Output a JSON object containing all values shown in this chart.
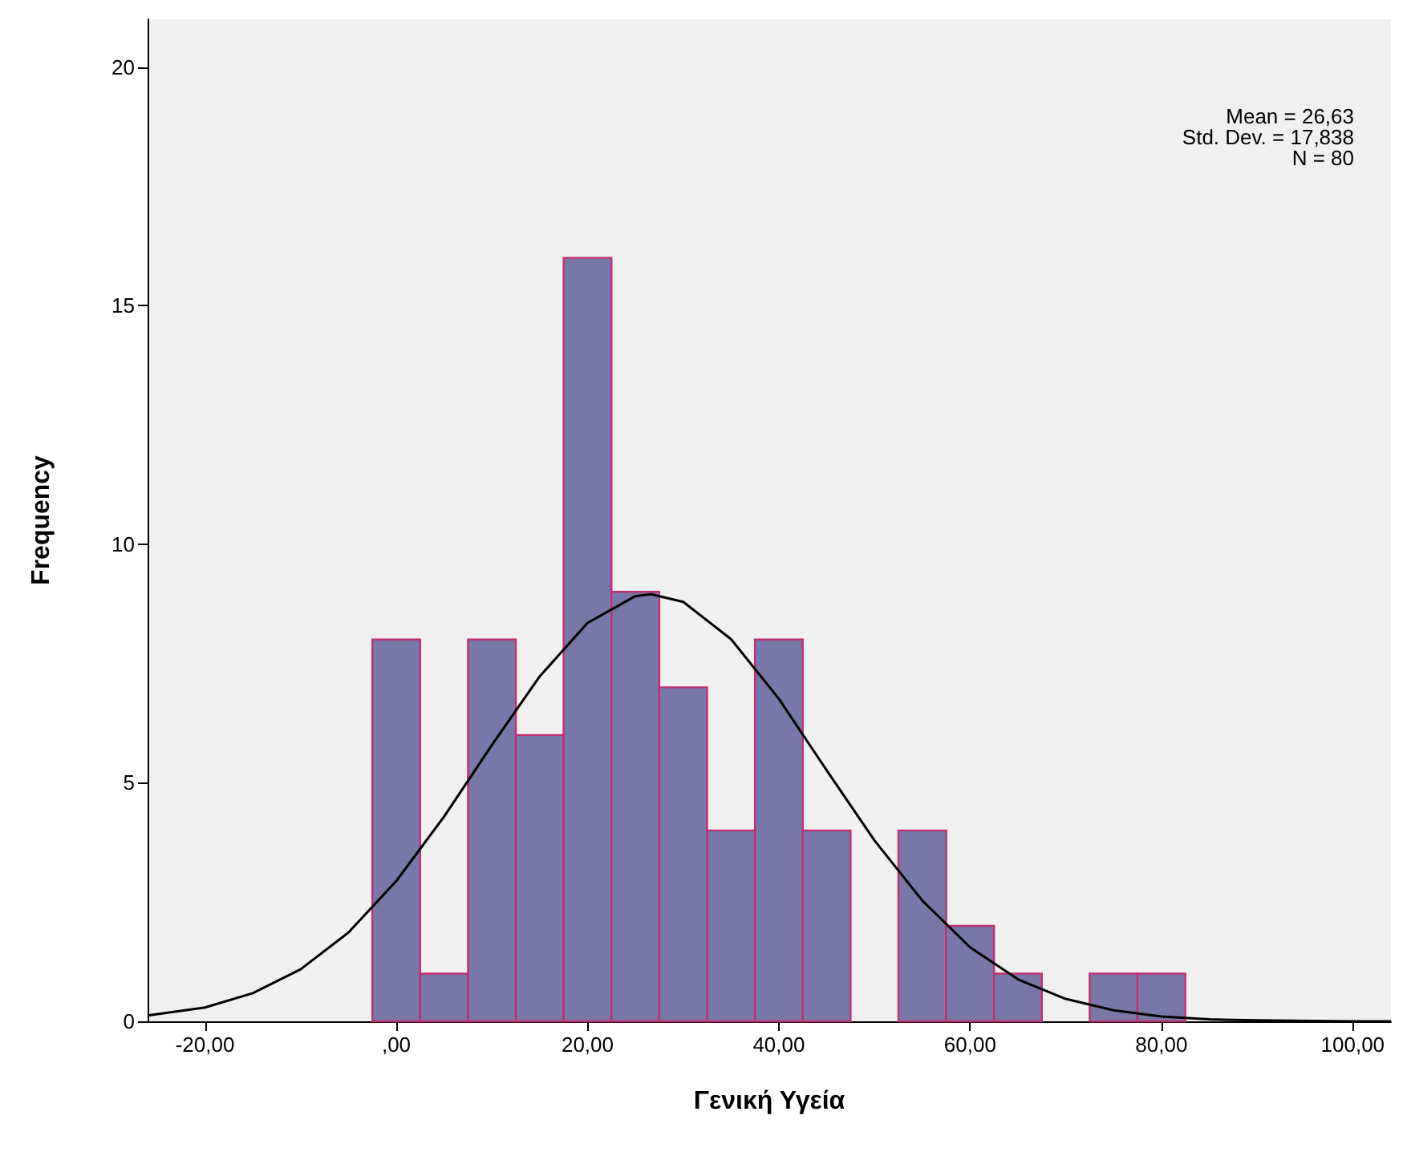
{
  "chart_data": {
    "type": "histogram",
    "xlabel": "Γενική Υγεία",
    "ylabel": "Frequency",
    "bins": [
      -2.5,
      2.5,
      7.5,
      12.5,
      17.5,
      22.5,
      27.5,
      32.5,
      37.5,
      42.5,
      47.5,
      52.5,
      57.5,
      62.5,
      67.5,
      72.5,
      77.5,
      82.5
    ],
    "values": [
      8,
      1,
      8,
      6,
      16,
      9,
      7,
      4,
      8,
      4,
      0,
      4,
      2,
      1,
      0,
      1,
      1
    ],
    "color": "#7878a8",
    "series": [
      {
        "type": "line",
        "color": "#000000",
        "x": [
          -26,
          -20,
          -15,
          -10,
          -5,
          0,
          5,
          10,
          15,
          20,
          25,
          26.63,
          30,
          35,
          40,
          45,
          50,
          55,
          60,
          65,
          70,
          75,
          80,
          85,
          90,
          100,
          104
        ],
        "values": [
          0.12,
          0.29,
          0.59,
          1.09,
          1.86,
          2.94,
          4.29,
          5.79,
          7.23,
          8.35,
          8.91,
          8.95,
          8.79,
          8.01,
          6.76,
          5.26,
          3.79,
          2.53,
          1.55,
          0.88,
          0.47,
          0.23,
          0.1,
          0.04,
          0.02,
          0,
          0
        ]
      }
    ],
    "xlim": [
      -26,
      104
    ],
    "xticks": [
      {
        "value": -20,
        "label": "-20,00"
      },
      {
        "value": 0,
        "label": ",00"
      },
      {
        "value": 20,
        "label": "20,00"
      },
      {
        "value": 40,
        "label": "40,00"
      },
      {
        "value": 60,
        "label": "60,00"
      },
      {
        "value": 80,
        "label": "80,00"
      },
      {
        "value": 100,
        "label": "100,00"
      }
    ],
    "ylim": [
      0,
      21
    ],
    "yticks": [
      0,
      5,
      10,
      15,
      20
    ],
    "annotations": [
      "Mean = 26,63",
      "Std. Dev. = 17,838",
      "N = 80"
    ],
    "grid": false,
    "line_style": "solid",
    "marker": "none"
  }
}
